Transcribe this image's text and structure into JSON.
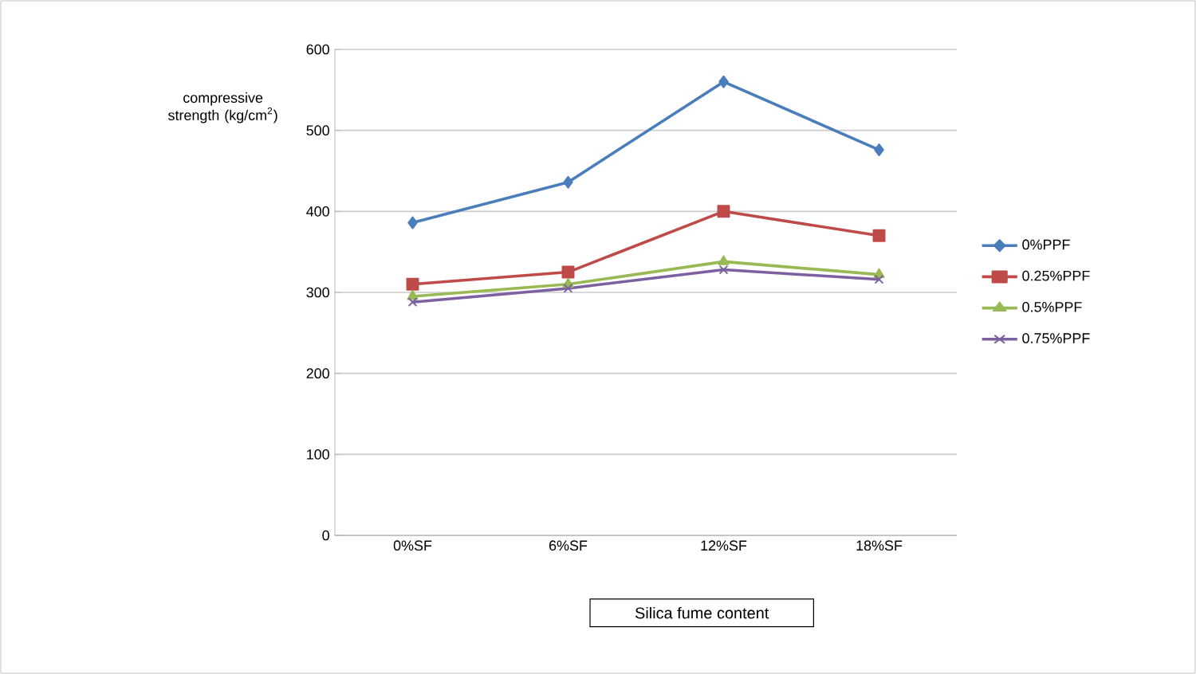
{
  "chart_data": {
    "type": "line",
    "xlabel": "Silica fume content",
    "ylabel": "compressive strength (kg/cm$^{2}$)",
    "categories": [
      "0%SF",
      "6%SF",
      "12%SF",
      "18%SF"
    ],
    "series": [
      {
        "name": "0%PPF",
        "color": "#4a7ebb",
        "marker": "diamond",
        "values": [
          386,
          436,
          560,
          476
        ]
      },
      {
        "name": "0.25%PPF",
        "color": "#be4b48",
        "marker": "square",
        "values": [
          310,
          325,
          400,
          370
        ]
      },
      {
        "name": "0.5%PPF",
        "color": "#98b954",
        "marker": "triangle",
        "values": [
          295,
          310,
          338,
          322
        ]
      },
      {
        "name": "0.75%PPF",
        "color": "#7d60a0",
        "marker": "cross",
        "values": [
          288,
          305,
          328,
          316
        ]
      }
    ],
    "ylim": [
      0,
      600
    ],
    "yticks": [
      0,
      100,
      200,
      300,
      400,
      500,
      600
    ],
    "grid": "y",
    "legend": "right"
  }
}
